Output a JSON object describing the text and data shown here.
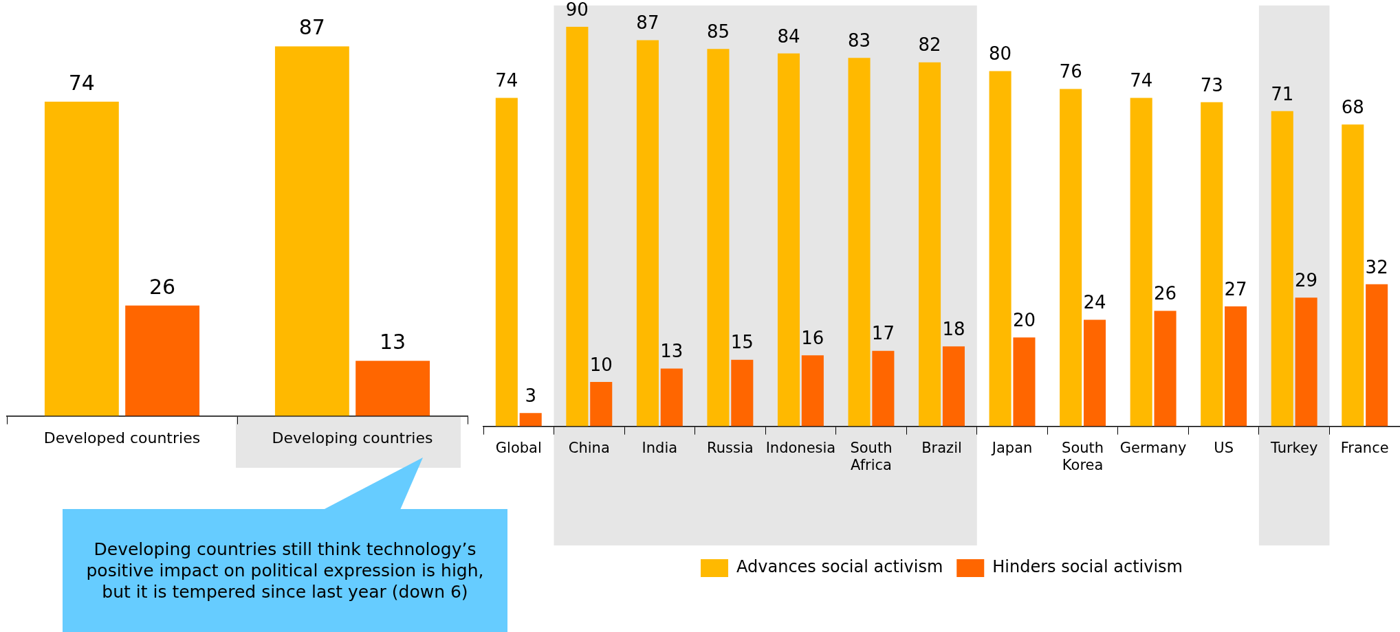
{
  "chart_data": [
    {
      "type": "bar",
      "categories": [
        "Developed countries",
        "Developing countries"
      ],
      "series": [
        {
          "color": "#ffb900",
          "values": [
            74,
            87
          ]
        },
        {
          "color": "#ff6600",
          "values": [
            26,
            13
          ]
        }
      ],
      "data_labels": true,
      "annotations": [
        "Developing countries still think technology’s positive impact on political expression is high, but it is tempered since last year (down 6)"
      ]
    },
    {
      "type": "bar",
      "categories": [
        "Global",
        "China",
        "India",
        "Russia",
        "Indonesia",
        "South Africa",
        "Brazil",
        "Japan",
        "South Korea",
        "Germany",
        "US",
        "Turkey",
        "France"
      ],
      "series": [
        {
          "name": "Advances social activism",
          "color": "#ffb900",
          "values": [
            74,
            90,
            87,
            85,
            84,
            83,
            82,
            80,
            76,
            74,
            73,
            71,
            68
          ]
        },
        {
          "name": "Hinders social activism",
          "color": "#ff6600",
          "values": [
            3,
            10,
            13,
            15,
            16,
            17,
            18,
            20,
            24,
            26,
            27,
            29,
            32
          ]
        }
      ],
      "data_labels": true,
      "legend": "bottom",
      "bands": [
        {
          "axis": "x",
          "from": "China",
          "to": "Brazil",
          "color": "#e6e6e6"
        },
        {
          "axis": "x",
          "from": "Turkey",
          "to": "Turkey",
          "color": "#e6e6e6"
        }
      ]
    }
  ]
}
